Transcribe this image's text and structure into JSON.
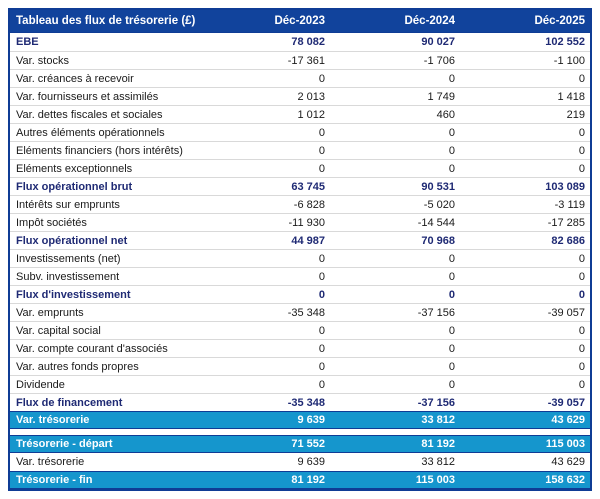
{
  "table": {
    "title": "Tableau des flux de trésorerie (£)",
    "columns": [
      "Déc-2023",
      "Déc-2024",
      "Déc-2025"
    ],
    "rows": [
      {
        "label": "EBE",
        "values": [
          "78 082",
          "90 027",
          "102 552"
        ],
        "style": "bold"
      },
      {
        "label": "Var. stocks",
        "values": [
          "-17 361",
          "-1 706",
          "-1 100"
        ],
        "style": "normal"
      },
      {
        "label": "Var. créances à recevoir",
        "values": [
          "0",
          "0",
          "0"
        ],
        "style": "normal"
      },
      {
        "label": "Var. fournisseurs et assimilés",
        "values": [
          "2 013",
          "1 749",
          "1 418"
        ],
        "style": "normal"
      },
      {
        "label": "Var. dettes fiscales et sociales",
        "values": [
          "1 012",
          "460",
          "219"
        ],
        "style": "normal"
      },
      {
        "label": "Autres éléments opérationnels",
        "values": [
          "0",
          "0",
          "0"
        ],
        "style": "normal"
      },
      {
        "label": "Eléments financiers (hors intérêts)",
        "values": [
          "0",
          "0",
          "0"
        ],
        "style": "normal"
      },
      {
        "label": "Eléments exceptionnels",
        "values": [
          "0",
          "0",
          "0"
        ],
        "style": "normal"
      },
      {
        "label": "Flux opérationnel brut",
        "values": [
          "63 745",
          "90 531",
          "103 089"
        ],
        "style": "bold"
      },
      {
        "label": "Intérêts sur emprunts",
        "values": [
          "-6 828",
          "-5 020",
          "-3 119"
        ],
        "style": "normal"
      },
      {
        "label": "Impôt sociétés",
        "values": [
          "-11 930",
          "-14 544",
          "-17 285"
        ],
        "style": "normal"
      },
      {
        "label": "Flux opérationnel net",
        "values": [
          "44 987",
          "70 968",
          "82 686"
        ],
        "style": "bold"
      },
      {
        "label": "Investissements (net)",
        "values": [
          "0",
          "0",
          "0"
        ],
        "style": "normal"
      },
      {
        "label": "Subv. investissement",
        "values": [
          "0",
          "0",
          "0"
        ],
        "style": "normal"
      },
      {
        "label": "Flux d'investissement",
        "values": [
          "0",
          "0",
          "0"
        ],
        "style": "bold"
      },
      {
        "label": "Var. emprunts",
        "values": [
          "-35 348",
          "-37 156",
          "-39 057"
        ],
        "style": "normal"
      },
      {
        "label": "Var. capital social",
        "values": [
          "0",
          "0",
          "0"
        ],
        "style": "normal"
      },
      {
        "label": "Var. compte courant d'associés",
        "values": [
          "0",
          "0",
          "0"
        ],
        "style": "normal"
      },
      {
        "label": "Var. autres fonds propres",
        "values": [
          "0",
          "0",
          "0"
        ],
        "style": "normal"
      },
      {
        "label": "Dividende",
        "values": [
          "0",
          "0",
          "0"
        ],
        "style": "normal"
      },
      {
        "label": "Flux de financement",
        "values": [
          "-35 348",
          "-37 156",
          "-39 057"
        ],
        "style": "bold"
      },
      {
        "label": "Var. trésorerie",
        "values": [
          "9 639",
          "33 812",
          "43 629"
        ],
        "style": "cyan"
      },
      {
        "label": "",
        "values": [
          "",
          "",
          ""
        ],
        "style": "spacer"
      },
      {
        "label": "Trésorerie - départ",
        "values": [
          "71 552",
          "81 192",
          "115 003"
        ],
        "style": "cyan"
      },
      {
        "label": "Var. trésorerie",
        "values": [
          "9 639",
          "33 812",
          "43 629"
        ],
        "style": "normal"
      },
      {
        "label": "Trésorerie - fin",
        "values": [
          "81 192",
          "115 003",
          "158 632"
        ],
        "style": "cyan"
      }
    ]
  },
  "colors": {
    "header_bg": "#11439C",
    "cyan_row_bg": "#1596CD",
    "bold_text": "#1F2A74",
    "table_border": "#0F3C95",
    "row_separator": "#D9D9D9"
  }
}
